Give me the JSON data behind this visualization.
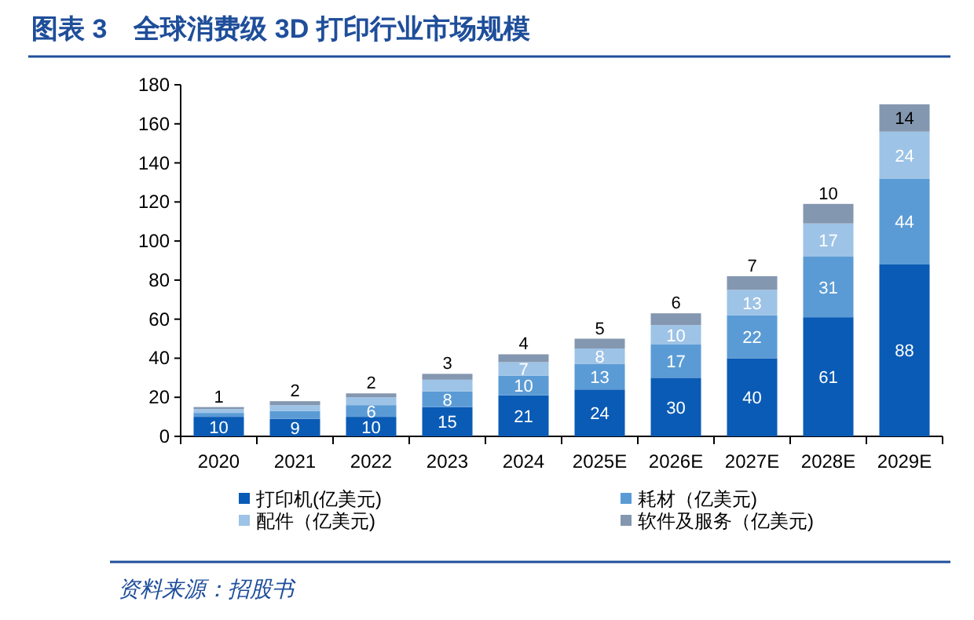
{
  "chart_data": {
    "type": "bar",
    "title": "图表 3　全球消费级 3D 打印行业市场规模",
    "stacked": true,
    "legend": "bottom",
    "grid": false,
    "categories": [
      "2020",
      "2021",
      "2022",
      "2023",
      "2024",
      "2025E",
      "2026E",
      "2027E",
      "2028E",
      "2029E"
    ],
    "ylim": [
      0,
      180
    ],
    "yticks": [
      0,
      20,
      40,
      60,
      80,
      100,
      120,
      140,
      160,
      180
    ],
    "series": [
      {
        "name": "打印机(亿美元)",
        "color": "#0a5bb5",
        "values": [
          10,
          9,
          10,
          15,
          21,
          24,
          30,
          40,
          61,
          88
        ],
        "value_labels": [
          "10",
          "9",
          "10",
          "15",
          "21",
          "24",
          "30",
          "40",
          "61",
          "88"
        ]
      },
      {
        "name": "耗材（亿美元)",
        "color": "#5b9bd5",
        "values": [
          2,
          4,
          6,
          8,
          10,
          13,
          17,
          22,
          31,
          44
        ],
        "value_labels": [
          null,
          null,
          "6",
          "8",
          "10",
          "13",
          "17",
          "22",
          "31",
          "44"
        ]
      },
      {
        "name": "配件（亿美元)",
        "color": "#9dc3e6",
        "values": [
          2,
          3,
          4,
          6,
          7,
          8,
          10,
          13,
          17,
          24
        ],
        "value_labels": [
          null,
          null,
          null,
          null,
          "7",
          "8",
          "10",
          "13",
          "17",
          "24"
        ]
      },
      {
        "name": "软件及服务（亿美元)",
        "color": "#8497b0",
        "values": [
          1,
          2,
          2,
          3,
          4,
          5,
          6,
          7,
          10,
          14
        ],
        "value_labels": [
          "1",
          "2",
          "2",
          "3",
          "4",
          "5",
          "6",
          "7",
          "10",
          "14"
        ]
      }
    ],
    "annotations": [
      "资料来源：招股书"
    ]
  }
}
